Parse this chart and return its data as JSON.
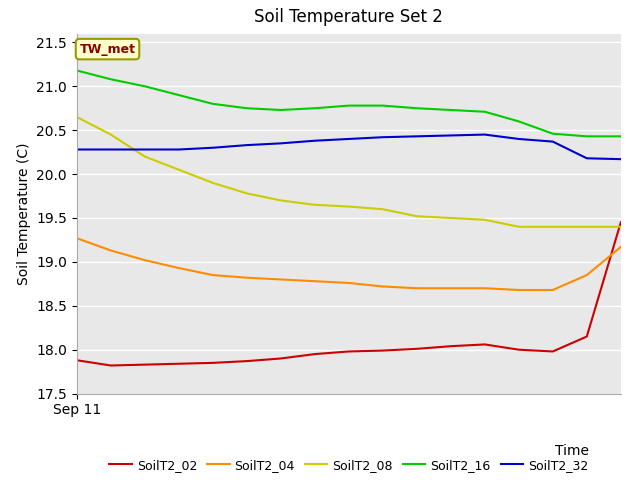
{
  "title": "Soil Temperature Set 2",
  "xlabel": "Time",
  "ylabel": "Soil Temperature (C)",
  "annotation": "TW_met",
  "background_color": "#e8e8e8",
  "ylim": [
    17.5,
    21.6
  ],
  "x_tick_label": "Sep 11",
  "yticks": [
    17.5,
    18.0,
    18.5,
    19.0,
    19.5,
    20.0,
    20.5,
    21.0,
    21.5
  ],
  "series": {
    "SoilT2_02": {
      "color": "#cc0000",
      "data": [
        17.88,
        17.82,
        17.83,
        17.84,
        17.85,
        17.87,
        17.9,
        17.95,
        17.98,
        17.99,
        18.01,
        18.04,
        18.06,
        18.0,
        17.98,
        18.15,
        19.45
      ]
    },
    "SoilT2_04": {
      "color": "#ff8c00",
      "data": [
        19.27,
        19.13,
        19.02,
        18.93,
        18.85,
        18.82,
        18.8,
        18.78,
        18.76,
        18.72,
        18.7,
        18.7,
        18.7,
        18.68,
        18.68,
        18.85,
        19.17
      ]
    },
    "SoilT2_08": {
      "color": "#cccc00",
      "data": [
        20.65,
        20.45,
        20.2,
        20.05,
        19.9,
        19.78,
        19.7,
        19.65,
        19.63,
        19.6,
        19.52,
        19.5,
        19.48,
        19.4,
        19.4,
        19.4,
        19.4
      ]
    },
    "SoilT2_16": {
      "color": "#00cc00",
      "data": [
        21.18,
        21.08,
        21.0,
        20.9,
        20.8,
        20.75,
        20.73,
        20.75,
        20.78,
        20.78,
        20.75,
        20.73,
        20.71,
        20.6,
        20.46,
        20.43,
        20.43
      ]
    },
    "SoilT2_32": {
      "color": "#0000cc",
      "data": [
        20.28,
        20.28,
        20.28,
        20.28,
        20.3,
        20.33,
        20.35,
        20.38,
        20.4,
        20.42,
        20.43,
        20.44,
        20.45,
        20.4,
        20.37,
        20.18,
        20.17
      ]
    }
  },
  "n_points": 17,
  "legend_colors": {
    "SoilT2_02": "#cc0000",
    "SoilT2_04": "#ff8c00",
    "SoilT2_08": "#cccc00",
    "SoilT2_16": "#00cc00",
    "SoilT2_32": "#0000cc"
  }
}
